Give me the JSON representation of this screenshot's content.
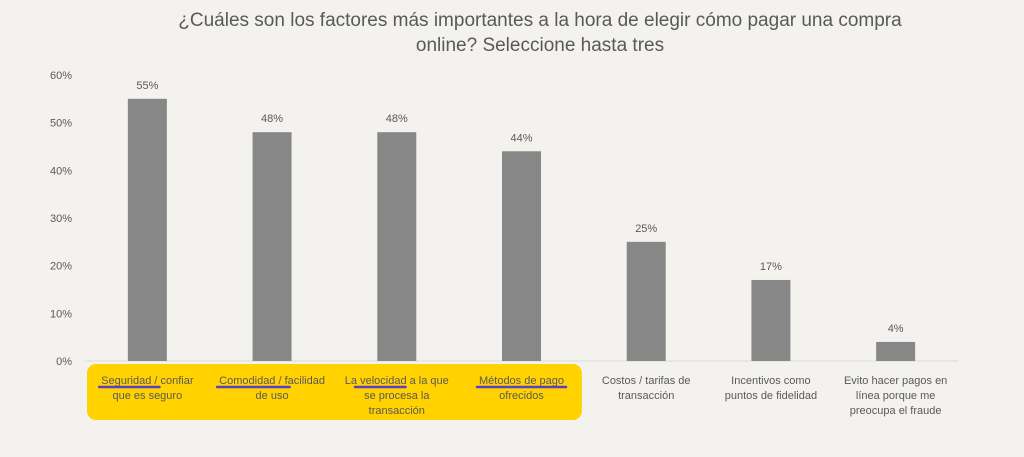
{
  "chart_data": {
    "type": "bar",
    "title_lines": [
      "¿Cuáles son los factores más importantes a la hora de elegir cómo pagar una compra",
      "online? Seleccione hasta tres"
    ],
    "categories": [
      [
        "Seguridad / confiar",
        "que es seguro"
      ],
      [
        "Comodidad / facilidad",
        "de uso"
      ],
      [
        "La velocidad a la que",
        "se procesa la",
        "transacción"
      ],
      [
        "Métodos de pago",
        "ofrecidos"
      ],
      [
        "Costos / tarifas de",
        "transacción"
      ],
      [
        "Incentivos como",
        "puntos de fidelidad"
      ],
      [
        "Evito hacer pagos en",
        "línea porque me",
        "preocupa el fraude"
      ]
    ],
    "values": [
      55,
      48,
      48,
      44,
      25,
      17,
      4
    ],
    "value_labels": [
      "55%",
      "48%",
      "48%",
      "44%",
      "25%",
      "17%",
      "4%"
    ],
    "y_ticks": [
      "0%",
      "10%",
      "20%",
      "30%",
      "40%",
      "50%",
      "60%"
    ],
    "ylim": [
      0,
      60
    ],
    "grid": false,
    "highlighted_categories": [
      0,
      1,
      2,
      3
    ],
    "underlined_words": [
      {
        "category": 0,
        "text": "Seguridad /"
      },
      {
        "category": 1,
        "text": "Comodidad / f"
      },
      {
        "category": 2,
        "text": "velocidad"
      },
      {
        "category": 3,
        "text": "Métodos de pago"
      }
    ],
    "colors": {
      "bar": "#878787",
      "highlight": "#ffd200",
      "underline": "#5a3fc9",
      "text": "#595959",
      "axis": "#d9d9d9",
      "background": "#f3f2ee"
    }
  }
}
